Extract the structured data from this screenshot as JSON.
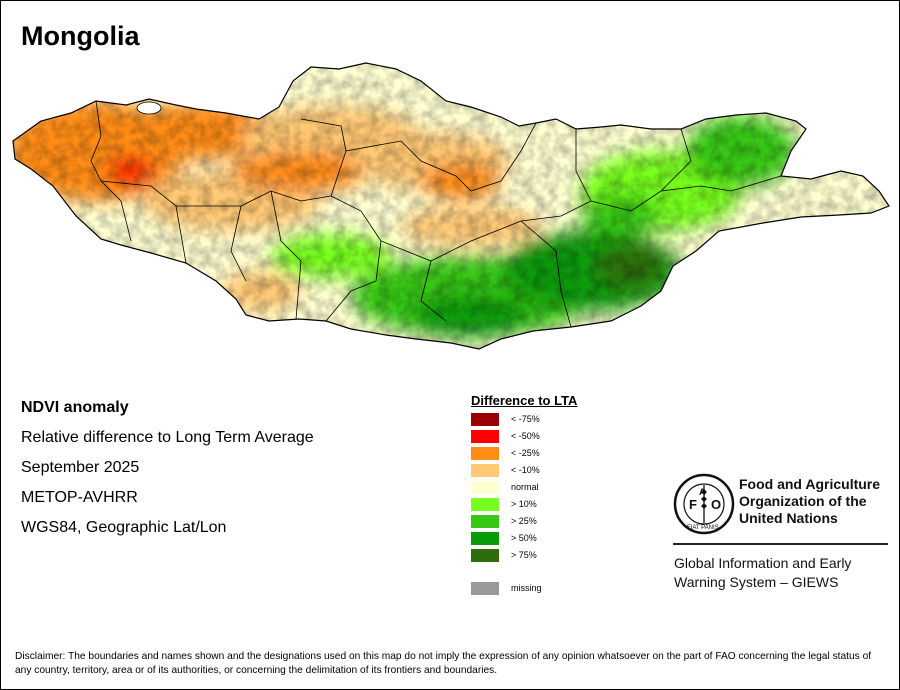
{
  "title": "Mongolia",
  "info": {
    "heading": "NDVI anomaly",
    "line1": "Relative difference to Long Term Average",
    "line2": "September 2025",
    "line3": "METOP-AVHRR",
    "line4": "WGS84, Geographic Lat/Lon"
  },
  "legend": {
    "title": "Difference to LTA",
    "items": [
      {
        "label": "< -75%",
        "color": "#9b0000"
      },
      {
        "label": "< -50%",
        "color": "#ff0000"
      },
      {
        "label": "< -25%",
        "color": "#ff8c14"
      },
      {
        "label": "< -10%",
        "color": "#ffc873"
      },
      {
        "label": "normal",
        "color": "#ffffd2"
      },
      {
        "label": "> 10%",
        "color": "#78ff1e"
      },
      {
        "label": "> 25%",
        "color": "#37c814"
      },
      {
        "label": "> 50%",
        "color": "#0a9b0a"
      },
      {
        "label": "> 75%",
        "color": "#2d6e0a"
      }
    ],
    "missing": {
      "label": "missing",
      "color": "#999999"
    }
  },
  "fao": {
    "emblem_text": "FAO",
    "emblem_motto": "FIAT PANIS",
    "name_line1": "Food and Agriculture",
    "name_line2": "Organization of the",
    "name_line3": "United Nations"
  },
  "giews": {
    "line1": "Global Information and Early",
    "line2": "Warning System – GIEWS"
  },
  "disclaimer": "Disclaimer: The boundaries and names shown and the designations used on this map do not imply the expression of any opinion whatsoever on the part of FAO concerning the legal status of any country, territory, area or of its authorities, or concerning the delimitation of its frontiers and boundaries."
}
